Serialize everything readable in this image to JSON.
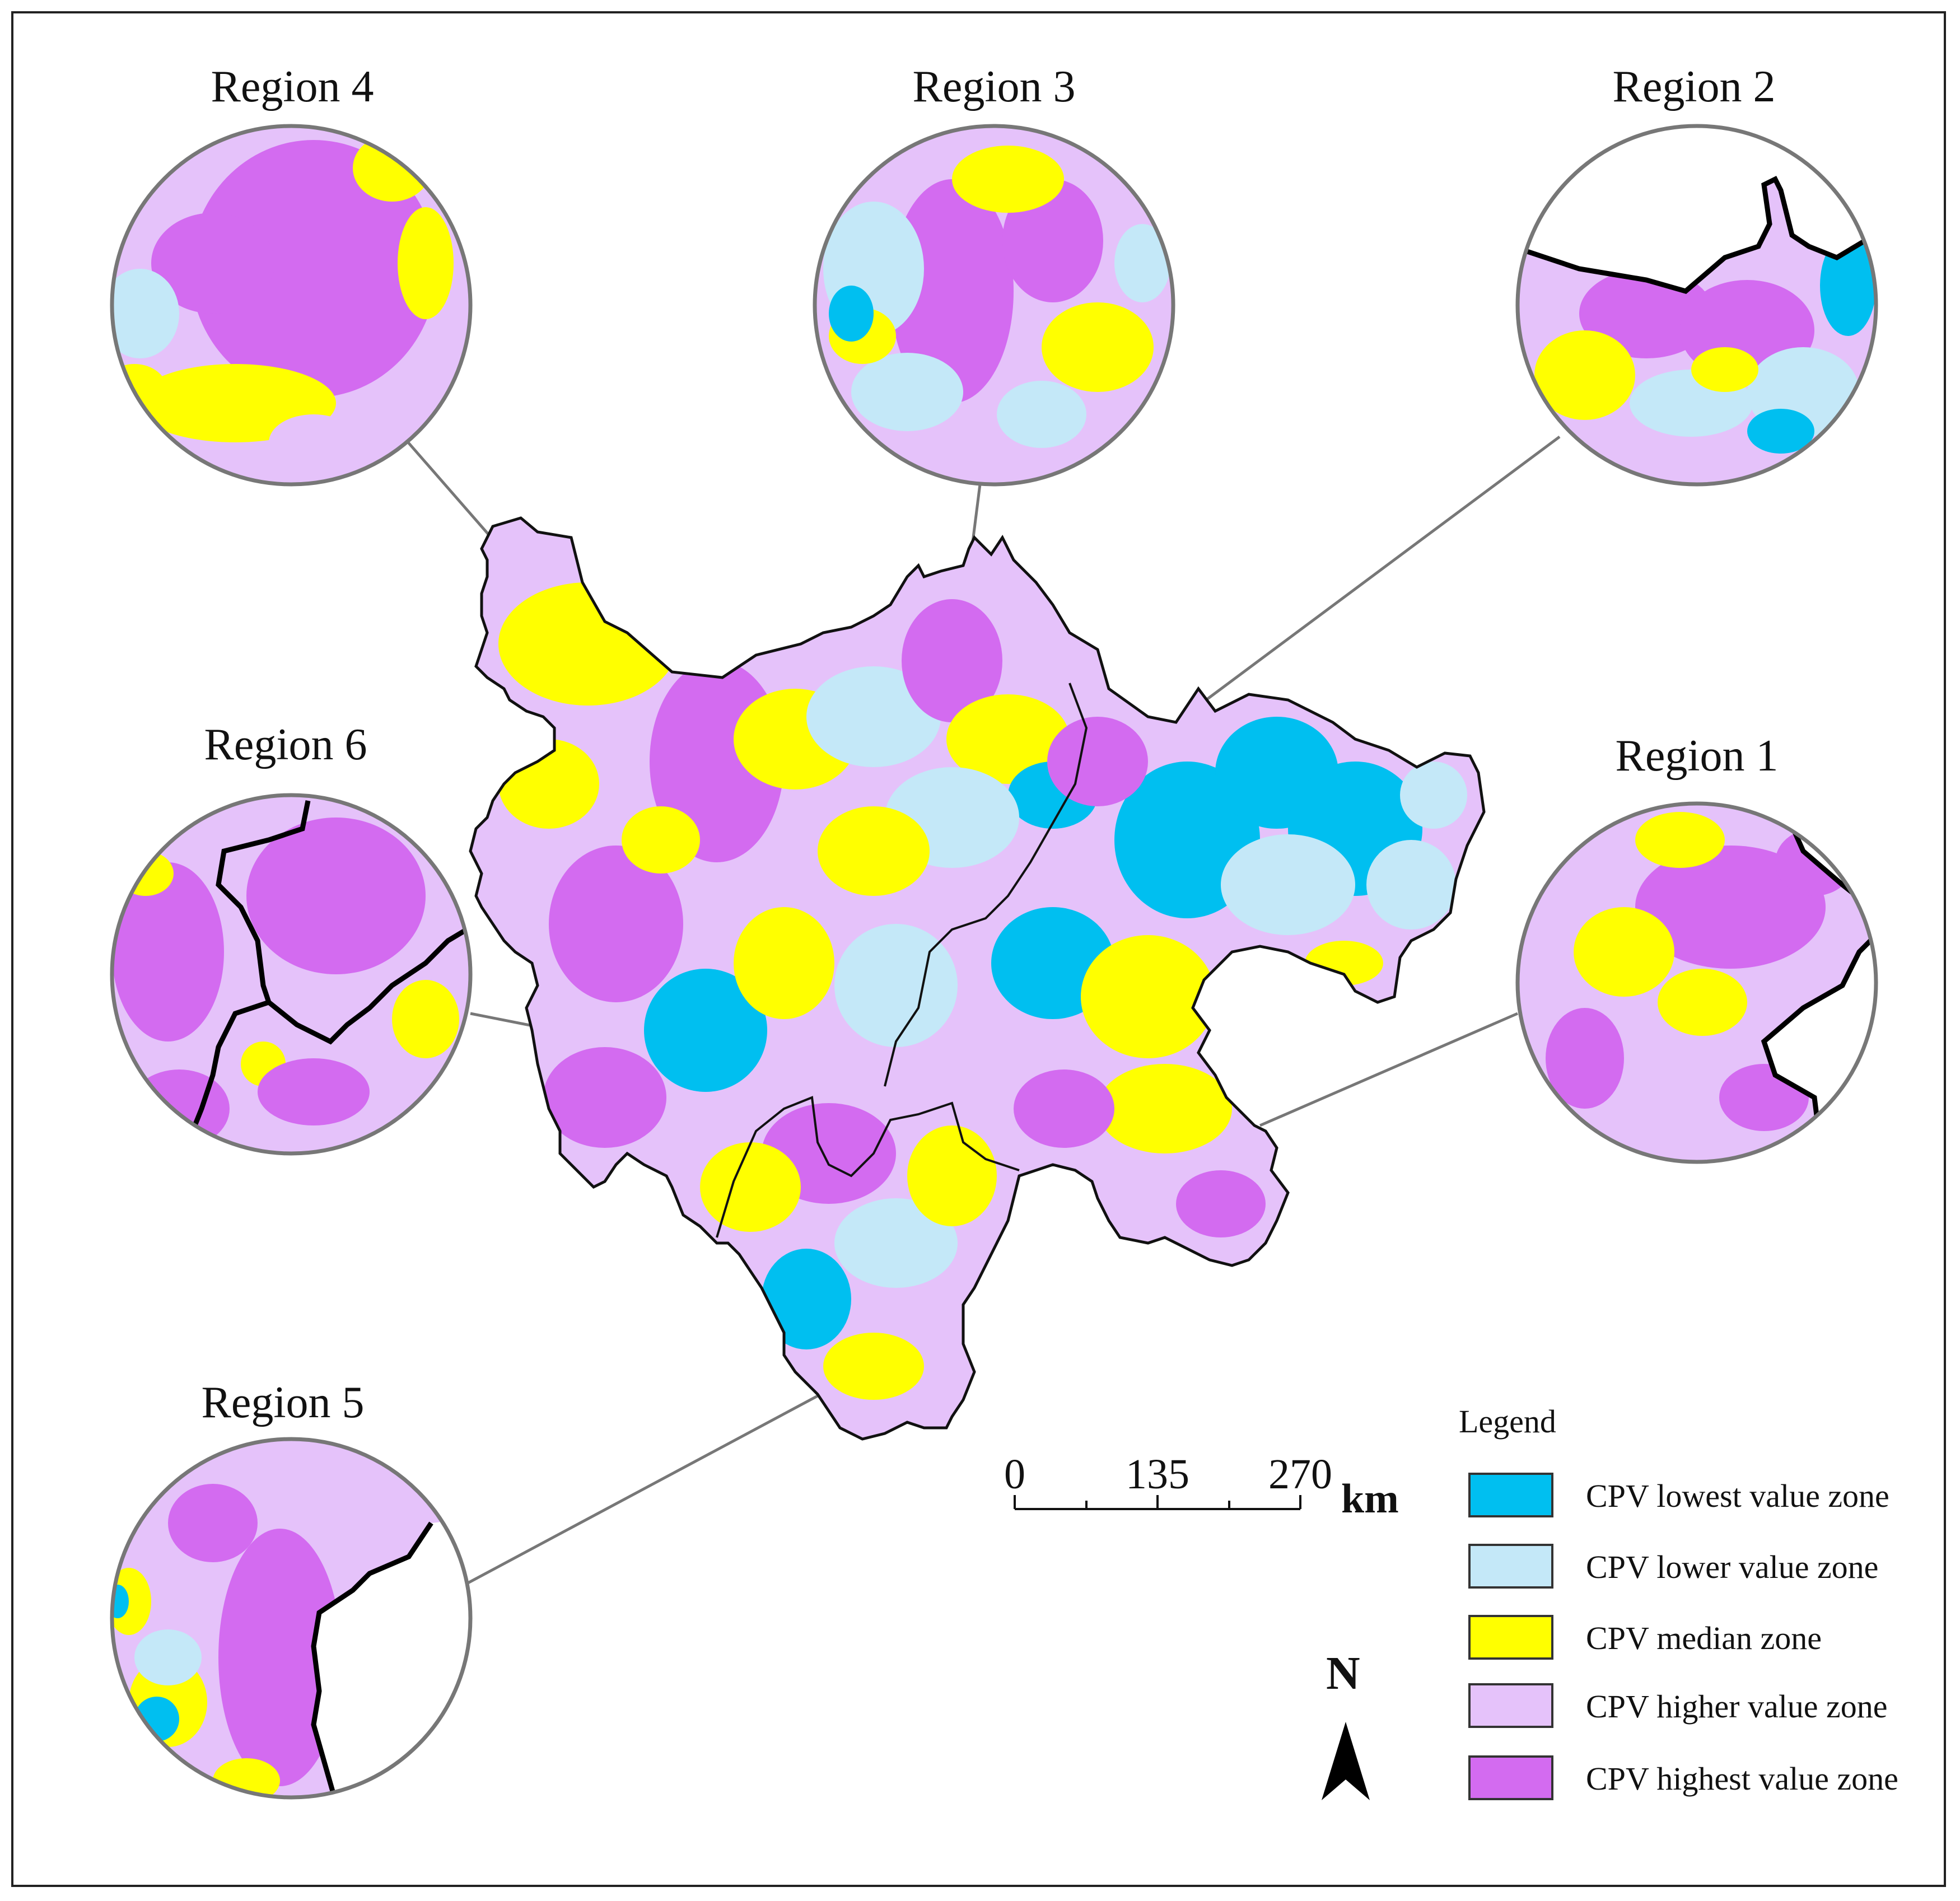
{
  "regions": [
    {
      "id": "region-1",
      "label": "Region 1"
    },
    {
      "id": "region-2",
      "label": "Region 2"
    },
    {
      "id": "region-3",
      "label": "Region 3"
    },
    {
      "id": "region-4",
      "label": "Region 4"
    },
    {
      "id": "region-5",
      "label": "Region 5"
    },
    {
      "id": "region-6",
      "label": "Region 6"
    }
  ],
  "legend": {
    "title": "Legend",
    "items": [
      {
        "label": "CPV lowest value zone",
        "color": "#00BFF0"
      },
      {
        "label": "CPV lower value zone",
        "color": "#C4E8F8"
      },
      {
        "label": "CPV median zone",
        "color": "#FFFF00"
      },
      {
        "label": "CPV higher value zone",
        "color": "#E5C2FA"
      },
      {
        "label": "CPV highest value zone",
        "color": "#D36BF0"
      }
    ]
  },
  "scale_bar": {
    "ticks": [
      "0",
      "135",
      "270"
    ],
    "unit": "km"
  },
  "north_arrow": {
    "label": "N"
  }
}
